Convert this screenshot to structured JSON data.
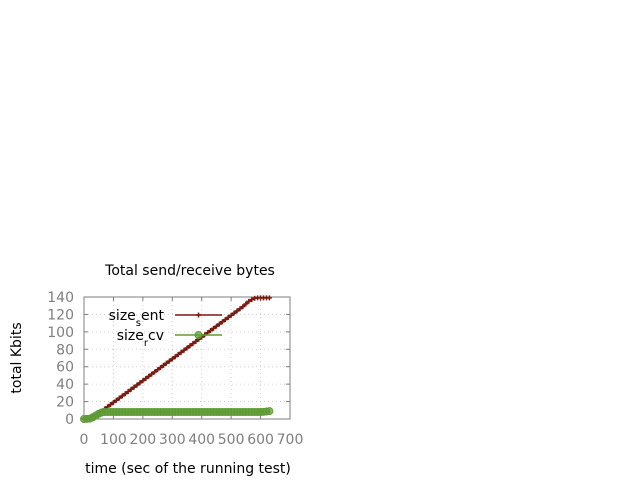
{
  "chart_data": {
    "type": "line",
    "title": "Total send/receive bytes",
    "xlabel": "time (sec of the running test)",
    "ylabel": "total Kbits",
    "xlim": [
      0,
      700
    ],
    "ylim": [
      0,
      140
    ],
    "xticks": [
      0,
      100,
      200,
      300,
      400,
      500,
      600,
      700
    ],
    "yticks": [
      0,
      20,
      40,
      60,
      80,
      100,
      120,
      140
    ],
    "grid": true,
    "legend_position": "top-left",
    "series": [
      {
        "name": "size_sent",
        "legend_main": "size",
        "legend_sub": "s",
        "legend_tail": "ent",
        "color": "#7a1a10",
        "marker": "plus",
        "x": [
          0,
          10,
          20,
          30,
          40,
          50,
          60,
          70,
          80,
          90,
          100,
          110,
          120,
          130,
          140,
          150,
          160,
          170,
          180,
          190,
          200,
          210,
          220,
          230,
          240,
          250,
          260,
          270,
          280,
          290,
          300,
          310,
          320,
          330,
          340,
          350,
          360,
          370,
          380,
          390,
          400,
          410,
          420,
          430,
          440,
          450,
          460,
          470,
          480,
          490,
          500,
          510,
          520,
          530,
          540,
          550,
          560,
          570,
          580,
          590,
          600,
          610,
          620,
          630
        ],
        "y": [
          0,
          0.5,
          1,
          2.5,
          4,
          6.5,
          9,
          11.5,
          14,
          16.5,
          19,
          21.5,
          24,
          26.5,
          29,
          31.5,
          34,
          36.5,
          39,
          41.5,
          44,
          46.5,
          49,
          51.5,
          54,
          56.5,
          59,
          61.5,
          64,
          66.5,
          69,
          71.5,
          74,
          76.5,
          79,
          81.5,
          84,
          86.5,
          89,
          91.5,
          94,
          96.5,
          99,
          101.5,
          104,
          106.5,
          109,
          111.5,
          114,
          116.5,
          119,
          121.5,
          124,
          126.5,
          129,
          132,
          135,
          137,
          138.5,
          139,
          139,
          139,
          139,
          139
        ]
      },
      {
        "name": "size_rcv",
        "legend_main": "size",
        "legend_sub": "r",
        "legend_tail": "cv",
        "color": "#5e9c36",
        "marker": "circle",
        "x": [
          0,
          10,
          20,
          30,
          40,
          50,
          60,
          70,
          80,
          90,
          100,
          110,
          120,
          130,
          140,
          150,
          160,
          170,
          180,
          190,
          200,
          210,
          220,
          230,
          240,
          250,
          260,
          270,
          280,
          290,
          300,
          310,
          320,
          330,
          340,
          350,
          360,
          370,
          380,
          390,
          400,
          410,
          420,
          430,
          440,
          450,
          460,
          470,
          480,
          490,
          500,
          510,
          520,
          530,
          540,
          550,
          560,
          570,
          580,
          590,
          600,
          610,
          620,
          630
        ],
        "y": [
          0,
          0.2,
          0.5,
          2,
          4,
          6,
          7.5,
          8,
          8,
          8,
          8,
          8,
          8,
          8,
          8,
          8,
          8,
          8,
          8,
          8,
          8,
          8,
          8,
          8,
          8,
          8,
          8,
          8,
          8,
          8,
          8,
          8,
          8,
          8,
          8,
          8,
          8,
          8,
          8,
          8,
          8,
          8,
          8,
          8,
          8,
          8,
          8,
          8,
          8,
          8,
          8,
          8,
          8,
          8,
          8,
          8,
          8,
          8,
          8,
          8,
          8,
          8.2,
          8.6,
          9
        ]
      }
    ]
  }
}
